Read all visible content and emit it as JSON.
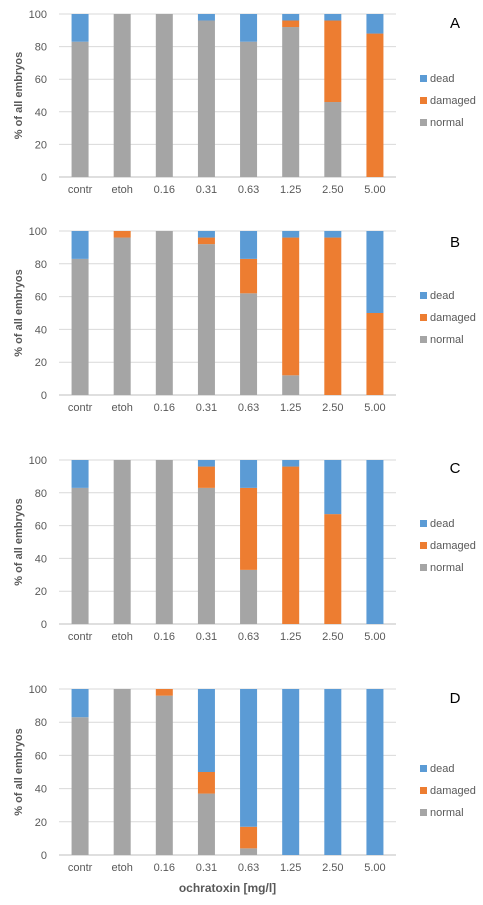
{
  "colors": {
    "dead": "#5B9BD5",
    "damaged": "#ED7D31",
    "normal": "#A5A5A5",
    "grid": "#D9D9D9",
    "axis": "#BFBFBF",
    "text": "#595959"
  },
  "chart_data": [
    {
      "type": "bar",
      "stacked": true,
      "panel_label": "A",
      "ylabel": "% of all embryos",
      "xlabel": "",
      "ylim": [
        0,
        100
      ],
      "yticks": [
        "0",
        "20",
        "40",
        "60",
        "80",
        "100"
      ],
      "grid": true,
      "legend_position": "right",
      "categories": [
        "contr",
        "etoh",
        "0.16",
        "0.31",
        "0.63",
        "1.25",
        "2.50",
        "5.00"
      ],
      "series": [
        {
          "name": "normal",
          "key": "normal",
          "values": [
            83,
            100,
            100,
            96,
            83,
            92,
            46,
            0
          ]
        },
        {
          "name": "damaged",
          "key": "damaged",
          "values": [
            0,
            0,
            0,
            0,
            0,
            4,
            50,
            88
          ]
        },
        {
          "name": "dead",
          "key": "dead",
          "values": [
            17,
            0,
            0,
            4,
            17,
            4,
            4,
            12
          ]
        }
      ],
      "legend_order": [
        "dead",
        "damaged",
        "normal"
      ]
    },
    {
      "type": "bar",
      "stacked": true,
      "panel_label": "B",
      "ylabel": "% of all embryos",
      "xlabel": "",
      "ylim": [
        0,
        100
      ],
      "yticks": [
        "0",
        "20",
        "40",
        "60",
        "80",
        "100"
      ],
      "grid": true,
      "legend_position": "right",
      "categories": [
        "contr",
        "etoh",
        "0.16",
        "0.31",
        "0.63",
        "1.25",
        "2.50",
        "5.00"
      ],
      "series": [
        {
          "name": "normal",
          "key": "normal",
          "values": [
            83,
            96,
            100,
            92,
            62,
            12,
            0,
            0
          ]
        },
        {
          "name": "damaged",
          "key": "damaged",
          "values": [
            0,
            4,
            0,
            4,
            21,
            84,
            96,
            50
          ]
        },
        {
          "name": "dead",
          "key": "dead",
          "values": [
            17,
            0,
            0,
            4,
            17,
            4,
            4,
            50
          ]
        }
      ],
      "legend_order": [
        "dead",
        "damaged",
        "normal"
      ]
    },
    {
      "type": "bar",
      "stacked": true,
      "panel_label": "C",
      "ylabel": "% of all embryos",
      "xlabel": "",
      "ylim": [
        0,
        100
      ],
      "yticks": [
        "0",
        "20",
        "40",
        "60",
        "80",
        "100"
      ],
      "grid": true,
      "legend_position": "right",
      "categories": [
        "contr",
        "etoh",
        "0.16",
        "0.31",
        "0.63",
        "1.25",
        "2.50",
        "5.00"
      ],
      "series": [
        {
          "name": "normal",
          "key": "normal",
          "values": [
            83,
            100,
            100,
            83,
            33,
            0,
            0,
            0
          ]
        },
        {
          "name": "damaged",
          "key": "damaged",
          "values": [
            0,
            0,
            0,
            13,
            50,
            96,
            67,
            0
          ]
        },
        {
          "name": "dead",
          "key": "dead",
          "values": [
            17,
            0,
            0,
            4,
            17,
            4,
            33,
            100
          ]
        }
      ],
      "legend_order": [
        "dead",
        "damaged",
        "normal"
      ]
    },
    {
      "type": "bar",
      "stacked": true,
      "panel_label": "D",
      "ylabel": "% of all embryos",
      "xlabel": "ochratoxin [mg/l]",
      "ylim": [
        0,
        100
      ],
      "yticks": [
        "0",
        "20",
        "40",
        "60",
        "80",
        "100"
      ],
      "grid": true,
      "legend_position": "right",
      "categories": [
        "contr",
        "etoh",
        "0.16",
        "0.31",
        "0.63",
        "1.25",
        "2.50",
        "5.00"
      ],
      "series": [
        {
          "name": "normal",
          "key": "normal",
          "values": [
            83,
            100,
            96,
            37,
            4,
            0,
            0,
            0
          ]
        },
        {
          "name": "damaged",
          "key": "damaged",
          "values": [
            0,
            0,
            4,
            13,
            13,
            0,
            0,
            0
          ]
        },
        {
          "name": "dead",
          "key": "dead",
          "values": [
            17,
            0,
            0,
            50,
            83,
            100,
            100,
            100
          ]
        }
      ],
      "legend_order": [
        "dead",
        "damaged",
        "normal"
      ]
    }
  ]
}
